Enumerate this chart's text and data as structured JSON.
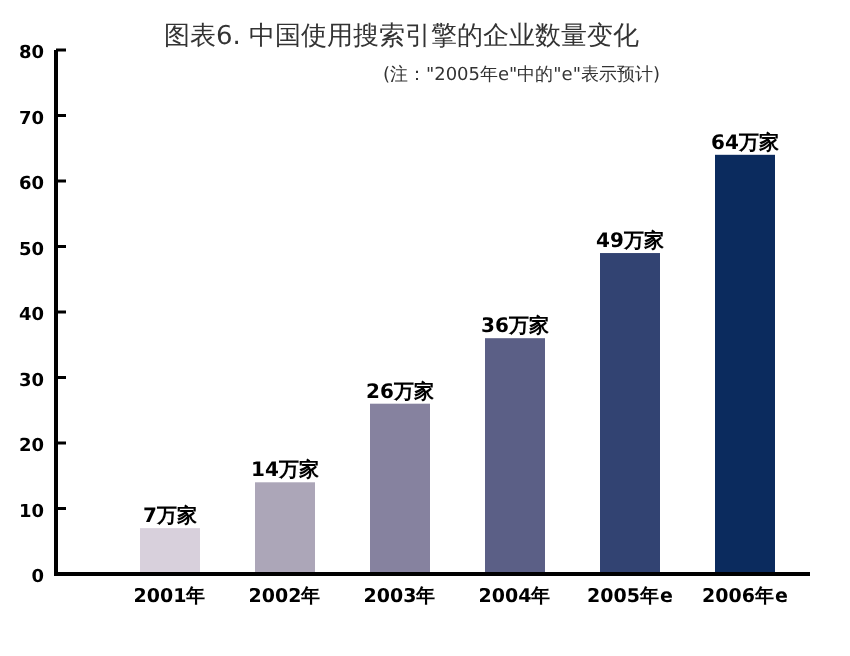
{
  "chart_data": {
    "type": "bar",
    "title": "图表6. 中国使用搜索引擎的企业数量变化",
    "subtitle": "(注：\"2005年e\"中的\"e\"表示预计)",
    "categories": [
      "2001年",
      "2002年",
      "2003年",
      "2004年",
      "2005年e",
      "2006年e"
    ],
    "values": [
      7,
      14,
      26,
      36,
      49,
      64
    ],
    "colors": [
      "#d8d0dc",
      "#aca6b8",
      "#86829f",
      "#5b5f86",
      "#324372",
      "#0b2b5e"
    ],
    "value_labels": [
      "7万家",
      "14万家",
      "26万家",
      "36万家",
      "49万家",
      "64万家"
    ],
    "ylim": [
      0,
      80
    ],
    "yticks": [
      0,
      10,
      20,
      30,
      40,
      50,
      60,
      70,
      80
    ],
    "grid": false
  }
}
